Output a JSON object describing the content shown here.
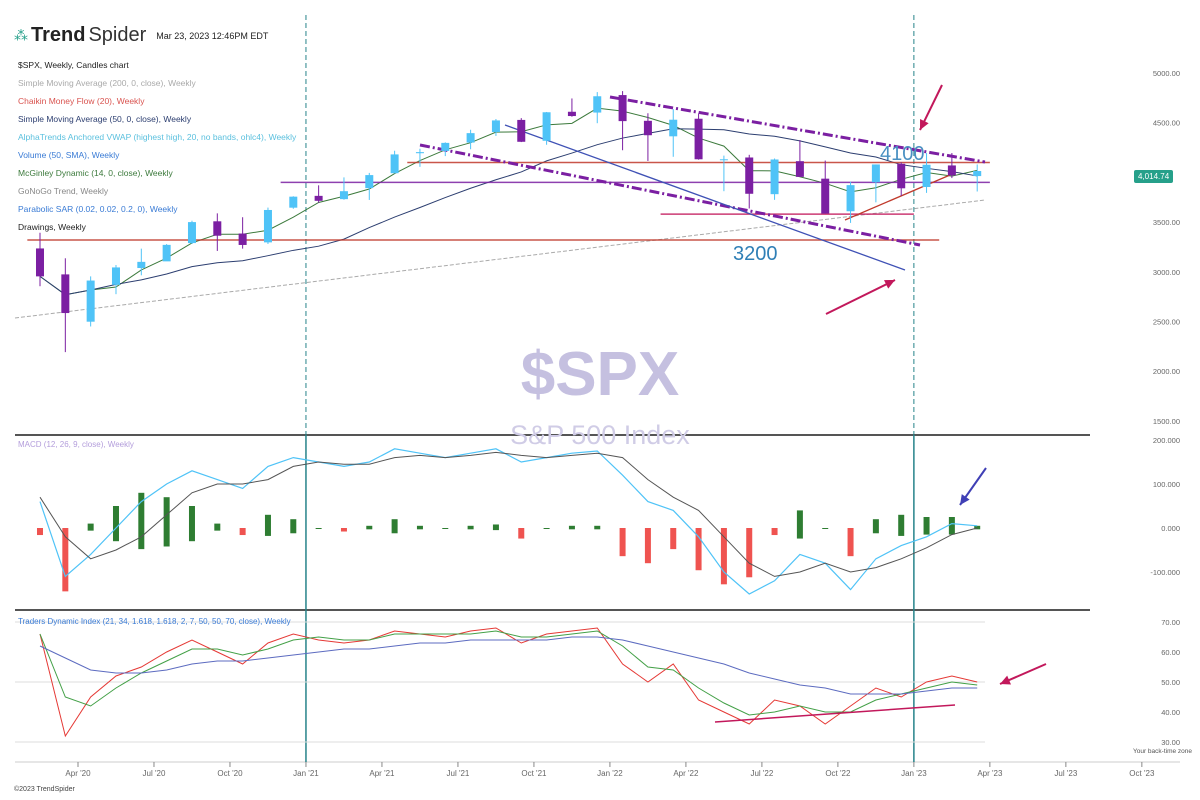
{
  "header": {
    "brand_bold": "Trend",
    "brand_light": "Spider",
    "timestamp": "Mar 23, 2023 12:46PM EDT"
  },
  "legend": [
    {
      "text": "$SPX, Weekly, Candles chart",
      "color": "#222222"
    },
    {
      "text": "Simple Moving Average (200, 0, close), Weekly",
      "color": "#aaaaaa"
    },
    {
      "text": "Chaikin Money Flow (20), Weekly",
      "color": "#d9534f"
    },
    {
      "text": "Simple Moving Average (50, 0, close), Weekly",
      "color": "#2c3e70"
    },
    {
      "text": "AlphaTrends Anchored VWAP (highest high, 20, no bands, ohlc4), Weekly",
      "color": "#5bc0de"
    },
    {
      "text": "Volume (50, SMA), Weekly",
      "color": "#3a7bd5"
    },
    {
      "text": "McGinley Dynamic (14, 0, close), Weekly",
      "color": "#3c7a3c"
    },
    {
      "text": "GoNoGo Trend, Weekly",
      "color": "#888888"
    },
    {
      "text": "Parabolic SAR (0.02, 0.02, 0.2, 0), Weekly",
      "color": "#3a7bd5"
    },
    {
      "text": "Drawings, Weekly",
      "color": "#222222"
    }
  ],
  "price_badge": "4,014.74",
  "watermark": {
    "symbol": "$SPX",
    "name": "S&P 500 Index"
  },
  "annotations": {
    "level_high": "4100",
    "level_low": "3200"
  },
  "footer": "©2023 TrendSpider",
  "timezone_note": "Your back-time zone",
  "colors": {
    "up": "#4fc3f7",
    "down": "#7b1fa2",
    "accent": "#26a08a",
    "arrow": "#c2185b",
    "macd_line": "#4fc3f7",
    "signal_line": "#555555",
    "hist_pos": "#2e7d32",
    "hist_neg": "#ef5350",
    "trend_purple": "#7b1fa2",
    "support_red": "#c0392b"
  },
  "chart_data": [
    {
      "type": "candlestick",
      "title": "$SPX, Weekly, Candles chart",
      "scale": "linear",
      "ylim": [
        1300,
        5250
      ],
      "y_ticks": [
        "5000.00",
        "4500.00",
        "3500.00",
        "3000.00",
        "2500.00",
        "2000.00",
        "1500.00"
      ],
      "x_ticks": [
        "Apr '20",
        "Jul '20",
        "Oct '20",
        "Jan '21",
        "Apr '21",
        "Jul '21",
        "Oct '21",
        "Jan '22",
        "Apr '22",
        "Jul '22",
        "Oct '22",
        "Jan '23",
        "Apr '23",
        "Jul '23",
        "Oct '23"
      ],
      "periods": [
        "2020-02",
        "2020-03",
        "2020-04",
        "2020-05",
        "2020-06",
        "2020-07",
        "2020-08",
        "2020-09",
        "2020-10",
        "2020-11",
        "2020-12",
        "2021-01",
        "2021-02",
        "2021-03",
        "2021-04",
        "2021-05",
        "2021-06",
        "2021-07",
        "2021-08",
        "2021-09",
        "2021-10",
        "2021-11",
        "2021-12",
        "2022-01",
        "2022-02",
        "2022-03",
        "2022-04",
        "2022-05",
        "2022-06",
        "2022-07",
        "2022-08",
        "2022-09",
        "2022-10",
        "2022-11",
        "2022-12",
        "2023-01",
        "2023-02",
        "2023-03"
      ],
      "open": [
        3235,
        2974,
        2498,
        2869,
        3038,
        3105,
        3289,
        3508,
        3385,
        3296,
        3645,
        3764,
        3731,
        3842,
        3992,
        4193,
        4216,
        4300,
        4406,
        4528,
        4318,
        4610,
        4602,
        4778,
        4519,
        4363,
        4540,
        4130,
        4150,
        3781,
        4113,
        3937,
        3609,
        3901,
        4087,
        3853,
        4070,
        3963
      ],
      "high": [
        3393,
        3136,
        2954,
        3068,
        3233,
        3279,
        3514,
        3588,
        3549,
        3646,
        3760,
        3870,
        3950,
        3995,
        4218,
        4238,
        4302,
        4429,
        4537,
        4546,
        4608,
        4744,
        4808,
        4818,
        4595,
        4637,
        4593,
        4169,
        4177,
        4140,
        4325,
        4119,
        3905,
        4080,
        4101,
        4195,
        4195,
        4080
      ],
      "low": [
        2855,
        2192,
        2450,
        2775,
        2965,
        3115,
        3280,
        3210,
        3233,
        3280,
        3634,
        3695,
        3725,
        3723,
        3990,
        4056,
        4164,
        4233,
        4367,
        4305,
        4278,
        4560,
        4495,
        4223,
        4115,
        4157,
        4128,
        3811,
        3637,
        3724,
        3954,
        3585,
        3492,
        3699,
        3765,
        3794,
        3943,
        3808
      ],
      "close": [
        2954,
        2585,
        2912,
        3044,
        3100,
        3271,
        3500,
        3363,
        3270,
        3622,
        3756,
        3714,
        3811,
        3973,
        4181,
        4204,
        4297,
        4395,
        4523,
        4308,
        4605,
        4567,
        4766,
        4516,
        4374,
        4530,
        4132,
        4132,
        3785,
        4130,
        3955,
        3586,
        3872,
        4080,
        3840,
        4077,
        3970,
        4014
      ],
      "drawings": [
        {
          "type": "horizontal",
          "price": 3320,
          "from": "2020-02",
          "to": "2023-01",
          "color": "#c0392b"
        },
        {
          "type": "horizontal",
          "price": 4100,
          "from": "2021-05",
          "to": "2023-03",
          "color": "#c0392b"
        },
        {
          "type": "horizontal",
          "price": 3900,
          "from": "2020-12",
          "to": "2023-03",
          "color": "#7b1fa2"
        },
        {
          "type": "horizontal",
          "price": 3580,
          "from": "2022-03",
          "to": "2022-12",
          "color": "#c2185b"
        }
      ]
    },
    {
      "type": "macd",
      "title": "MACD (12, 26, 9, close), Weekly",
      "ylim": [
        -190,
        210
      ],
      "y_ticks": [
        "200.000",
        "100.000",
        "0.000",
        "-100.000"
      ],
      "macd": [
        60,
        -110,
        -60,
        0,
        60,
        100,
        130,
        110,
        90,
        140,
        160,
        150,
        140,
        150,
        180,
        170,
        160,
        170,
        180,
        150,
        160,
        170,
        175,
        120,
        60,
        40,
        -20,
        -100,
        -150,
        -120,
        -60,
        -80,
        -140,
        -70,
        -40,
        -20,
        10,
        5
      ],
      "signal": [
        70,
        -20,
        -70,
        -50,
        -20,
        30,
        80,
        100,
        100,
        110,
        140,
        150,
        145,
        145,
        160,
        165,
        160,
        165,
        172,
        165,
        160,
        165,
        170,
        160,
        110,
        70,
        40,
        -20,
        -80,
        -110,
        -100,
        -80,
        -100,
        -90,
        -70,
        -45,
        -15,
        0
      ]
    },
    {
      "type": "line",
      "title": "Traders Dynamic Index (21, 34, 1.618, 1.618, 2, 7, 50, 50, 70, close), Weekly",
      "ylim": [
        27,
        72
      ],
      "y_ticks": [
        "70.00",
        "60.00",
        "50.00",
        "40.00",
        "30.00"
      ],
      "series": [
        {
          "values": [
            66,
            32,
            45,
            52,
            55,
            60,
            64,
            60,
            56,
            63,
            66,
            64,
            63,
            64,
            67,
            66,
            65,
            67,
            68,
            63,
            66,
            67,
            68,
            56,
            50,
            56,
            44,
            40,
            36,
            44,
            42,
            36,
            42,
            48,
            45,
            50,
            52,
            50
          ],
          "color": "#e53935"
        },
        {
          "values": [
            66,
            45,
            42,
            48,
            53,
            57,
            61,
            61,
            59,
            61,
            64,
            65,
            64,
            64,
            66,
            66,
            66,
            66,
            67,
            65,
            65,
            66,
            67,
            62,
            55,
            54,
            48,
            43,
            39,
            40,
            42,
            40,
            40,
            44,
            46,
            48,
            50,
            49
          ],
          "color": "#43a047"
        },
        {
          "values": [
            62,
            58,
            54,
            53,
            53,
            54,
            56,
            57,
            57,
            58,
            59,
            60,
            61,
            61,
            62,
            63,
            63,
            64,
            64,
            64,
            64,
            65,
            65,
            64,
            62,
            60,
            58,
            56,
            53,
            51,
            49,
            48,
            46,
            46,
            46,
            47,
            48,
            48
          ],
          "color": "#5c6bc0"
        }
      ],
      "hlines": [
        70,
        50,
        30
      ]
    }
  ]
}
